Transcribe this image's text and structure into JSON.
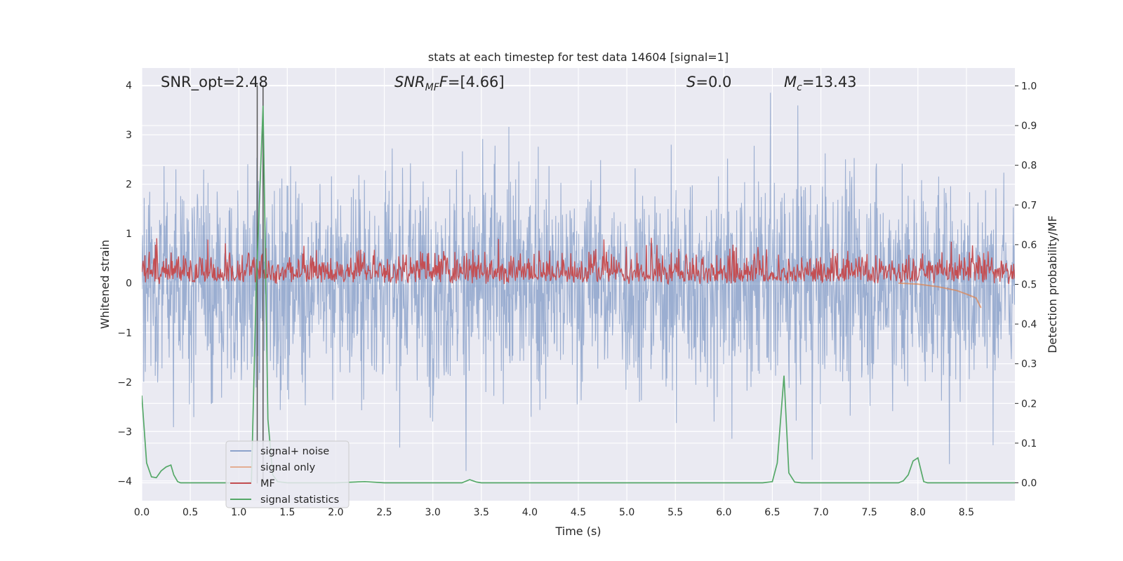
{
  "chart_data": {
    "type": "line",
    "title": "stats at each timestep for test data 14604 [signal=1]",
    "xlabel": "Time (s)",
    "ylabel": "Whitened strain",
    "y2label": "Detection probability/MF",
    "xlim": [
      0.0,
      9.0
    ],
    "ylim": [
      -4.4,
      4.35
    ],
    "y2lim": [
      -0.045,
      1.045
    ],
    "xticks": [
      "0.0",
      "0.5",
      "1.0",
      "1.5",
      "2.0",
      "2.5",
      "3.0",
      "3.5",
      "4.0",
      "4.5",
      "5.0",
      "5.5",
      "6.0",
      "6.5",
      "7.0",
      "7.5",
      "8.0",
      "8.5"
    ],
    "yticks": [
      "4",
      "3",
      "2",
      "1",
      "0",
      "−1",
      "−2",
      "−3",
      "−4"
    ],
    "y2ticks": [
      "1.0",
      "0.9",
      "0.8",
      "0.7",
      "0.6",
      "0.5",
      "0.4",
      "0.3",
      "0.2",
      "0.1",
      "0.0"
    ],
    "grid": true,
    "legend_position": "lower-left",
    "colors": {
      "background": "#eaeaf2",
      "noise": "#4c72b0",
      "signal": "#dd8452",
      "mf": "#c44e52",
      "stat": "#55a868",
      "vline": "#555555"
    },
    "annotations": {
      "snr_opt": "SNR_opt=2.48",
      "snr_mf_prefix": "SNR",
      "snr_mf_sub": "MF",
      "snr_mf_suffix": "=[4.66]",
      "s_var": "S",
      "s_value": "=0.0",
      "mc_var": "M",
      "mc_sub": "c",
      "mc_value": "=13.43"
    },
    "vlines_x": [
      1.19,
      1.25
    ],
    "series": [
      {
        "name": "signal+ noise",
        "axis": "left",
        "envelope_hint": "dense whitened noise, approx ±2 with spikes to about ±3.8"
      },
      {
        "name": "signal only",
        "axis": "left",
        "x": [
          7.8,
          8.0,
          8.2,
          8.4,
          8.5,
          8.6,
          8.65
        ],
        "y": [
          0.0,
          -0.02,
          -0.07,
          -0.15,
          -0.22,
          -0.3,
          -0.5
        ]
      },
      {
        "name": "MF",
        "axis": "right",
        "baseline": 0.5,
        "envelope_hint": "fluctuates between about 0.5 and 0.58, spikes to 0.62"
      },
      {
        "name": "signal statistics",
        "axis": "right",
        "x": [
          0.0,
          0.05,
          0.1,
          0.15,
          0.2,
          0.25,
          0.3,
          0.33,
          0.37,
          0.4,
          0.45,
          0.5,
          1.0,
          1.05,
          1.1,
          1.13,
          1.18,
          1.25,
          1.3,
          1.35,
          1.4,
          1.5,
          2.0,
          2.3,
          2.5,
          3.0,
          3.3,
          3.38,
          3.45,
          3.5,
          4.0,
          5.0,
          6.0,
          6.4,
          6.5,
          6.55,
          6.62,
          6.67,
          6.73,
          6.8,
          7.0,
          7.5,
          7.8,
          7.85,
          7.9,
          7.95,
          8.0,
          8.06,
          8.1,
          8.2,
          8.5,
          9.0
        ],
        "y": [
          0.22,
          0.05,
          0.015,
          0.013,
          0.03,
          0.04,
          0.045,
          0.02,
          0.003,
          0.0,
          0.0,
          0.0,
          0.0,
          0.0,
          0.001,
          0.002,
          0.5,
          0.95,
          0.16,
          0.02,
          0.003,
          0.0,
          0.0,
          0.003,
          0.0,
          0.0,
          0.0,
          0.008,
          0.002,
          0.0,
          0.0,
          0.0,
          0.0,
          0.0,
          0.003,
          0.05,
          0.27,
          0.025,
          0.002,
          0.0,
          0.0,
          0.0,
          0.0,
          0.005,
          0.02,
          0.055,
          0.063,
          0.003,
          0.0,
          0.0,
          0.0,
          0.0
        ]
      }
    ]
  }
}
